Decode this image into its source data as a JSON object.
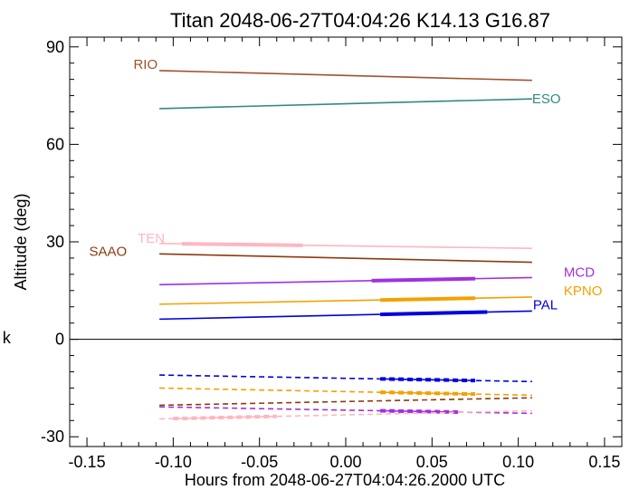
{
  "chart_data": {
    "type": "line",
    "title": "Titan 2048-06-27T04:04:26  K14.13  G16.87",
    "xlabel": "Hours from 2048-06-27T04:04:26.2000 UTC",
    "ylabel": "Altitude (deg)",
    "side_mark": "k",
    "xlim": [
      -0.16,
      0.16
    ],
    "ylim": [
      -33,
      93
    ],
    "xticks": [
      -0.15,
      -0.1,
      -0.05,
      0.0,
      0.05,
      0.1,
      0.15
    ],
    "xtick_labels": [
      "-0.15",
      "-0.10",
      "-0.05",
      "0.00",
      "0.05",
      "0.10",
      "0.15"
    ],
    "yticks": [
      -30,
      0,
      30,
      60,
      90
    ],
    "ytick_labels": [
      "-30",
      "0",
      "30",
      "60",
      "90"
    ],
    "x_minor_step": 0.01,
    "y_minor_step": 5,
    "zero_line": true,
    "grid": false,
    "series": [
      {
        "name": "RIO",
        "color": "#a0522d",
        "x": [
          -0.108,
          0.108
        ],
        "y": [
          82.7,
          79.7
        ],
        "label_pos": "start"
      },
      {
        "name": "ESO",
        "color": "#2e8b80",
        "x": [
          -0.108,
          0.108
        ],
        "y": [
          71.0,
          74.0
        ],
        "label_pos": "end"
      },
      {
        "name": "TEN",
        "color": "#ffb6c1",
        "x": [
          -0.108,
          0.108
        ],
        "y": [
          29.5,
          28.0
        ],
        "label_pos": "start",
        "thick": [
          -0.095,
          -0.025
        ]
      },
      {
        "name": "SAAO",
        "color": "#8b3a0f",
        "x": [
          -0.108,
          0.108
        ],
        "y": [
          26.3,
          23.7
        ],
        "label_pos": "start"
      },
      {
        "name": "MCD",
        "color": "#a030e0",
        "x": [
          -0.108,
          0.108
        ],
        "y": [
          16.8,
          19.0
        ],
        "label_pos": "end",
        "thick": [
          0.015,
          0.075
        ]
      },
      {
        "name": "KPNO",
        "color": "#f5a000",
        "x": [
          -0.108,
          0.108
        ],
        "y": [
          10.8,
          13.0
        ],
        "label_pos": "end",
        "thick": [
          0.02,
          0.075
        ]
      },
      {
        "name": "PAL",
        "color": "#0000dd",
        "x": [
          -0.108,
          0.108
        ],
        "y": [
          6.2,
          8.7
        ],
        "label_pos": "end",
        "thick": [
          0.02,
          0.082
        ]
      }
    ],
    "dashed_series": [
      {
        "color": "#0000dd",
        "x": [
          -0.108,
          0.108
        ],
        "y": [
          -11.0,
          -13.0
        ],
        "thick": [
          0.02,
          0.075
        ]
      },
      {
        "color": "#f5a000",
        "x": [
          -0.108,
          0.108
        ],
        "y": [
          -15.0,
          -17.2
        ],
        "thick": [
          0.02,
          0.075
        ]
      },
      {
        "color": "#8b3a0f",
        "x": [
          -0.108,
          0.108
        ],
        "y": [
          -20.3,
          -18.0
        ]
      },
      {
        "color": "#a030e0",
        "x": [
          -0.108,
          0.108
        ],
        "y": [
          -20.8,
          -22.8
        ],
        "thick": [
          0.02,
          0.065
        ]
      },
      {
        "color": "#ffb6c1",
        "x": [
          -0.108,
          0.108
        ],
        "y": [
          -24.5,
          -22.0
        ],
        "thick": [
          -0.1,
          -0.04
        ]
      }
    ]
  }
}
